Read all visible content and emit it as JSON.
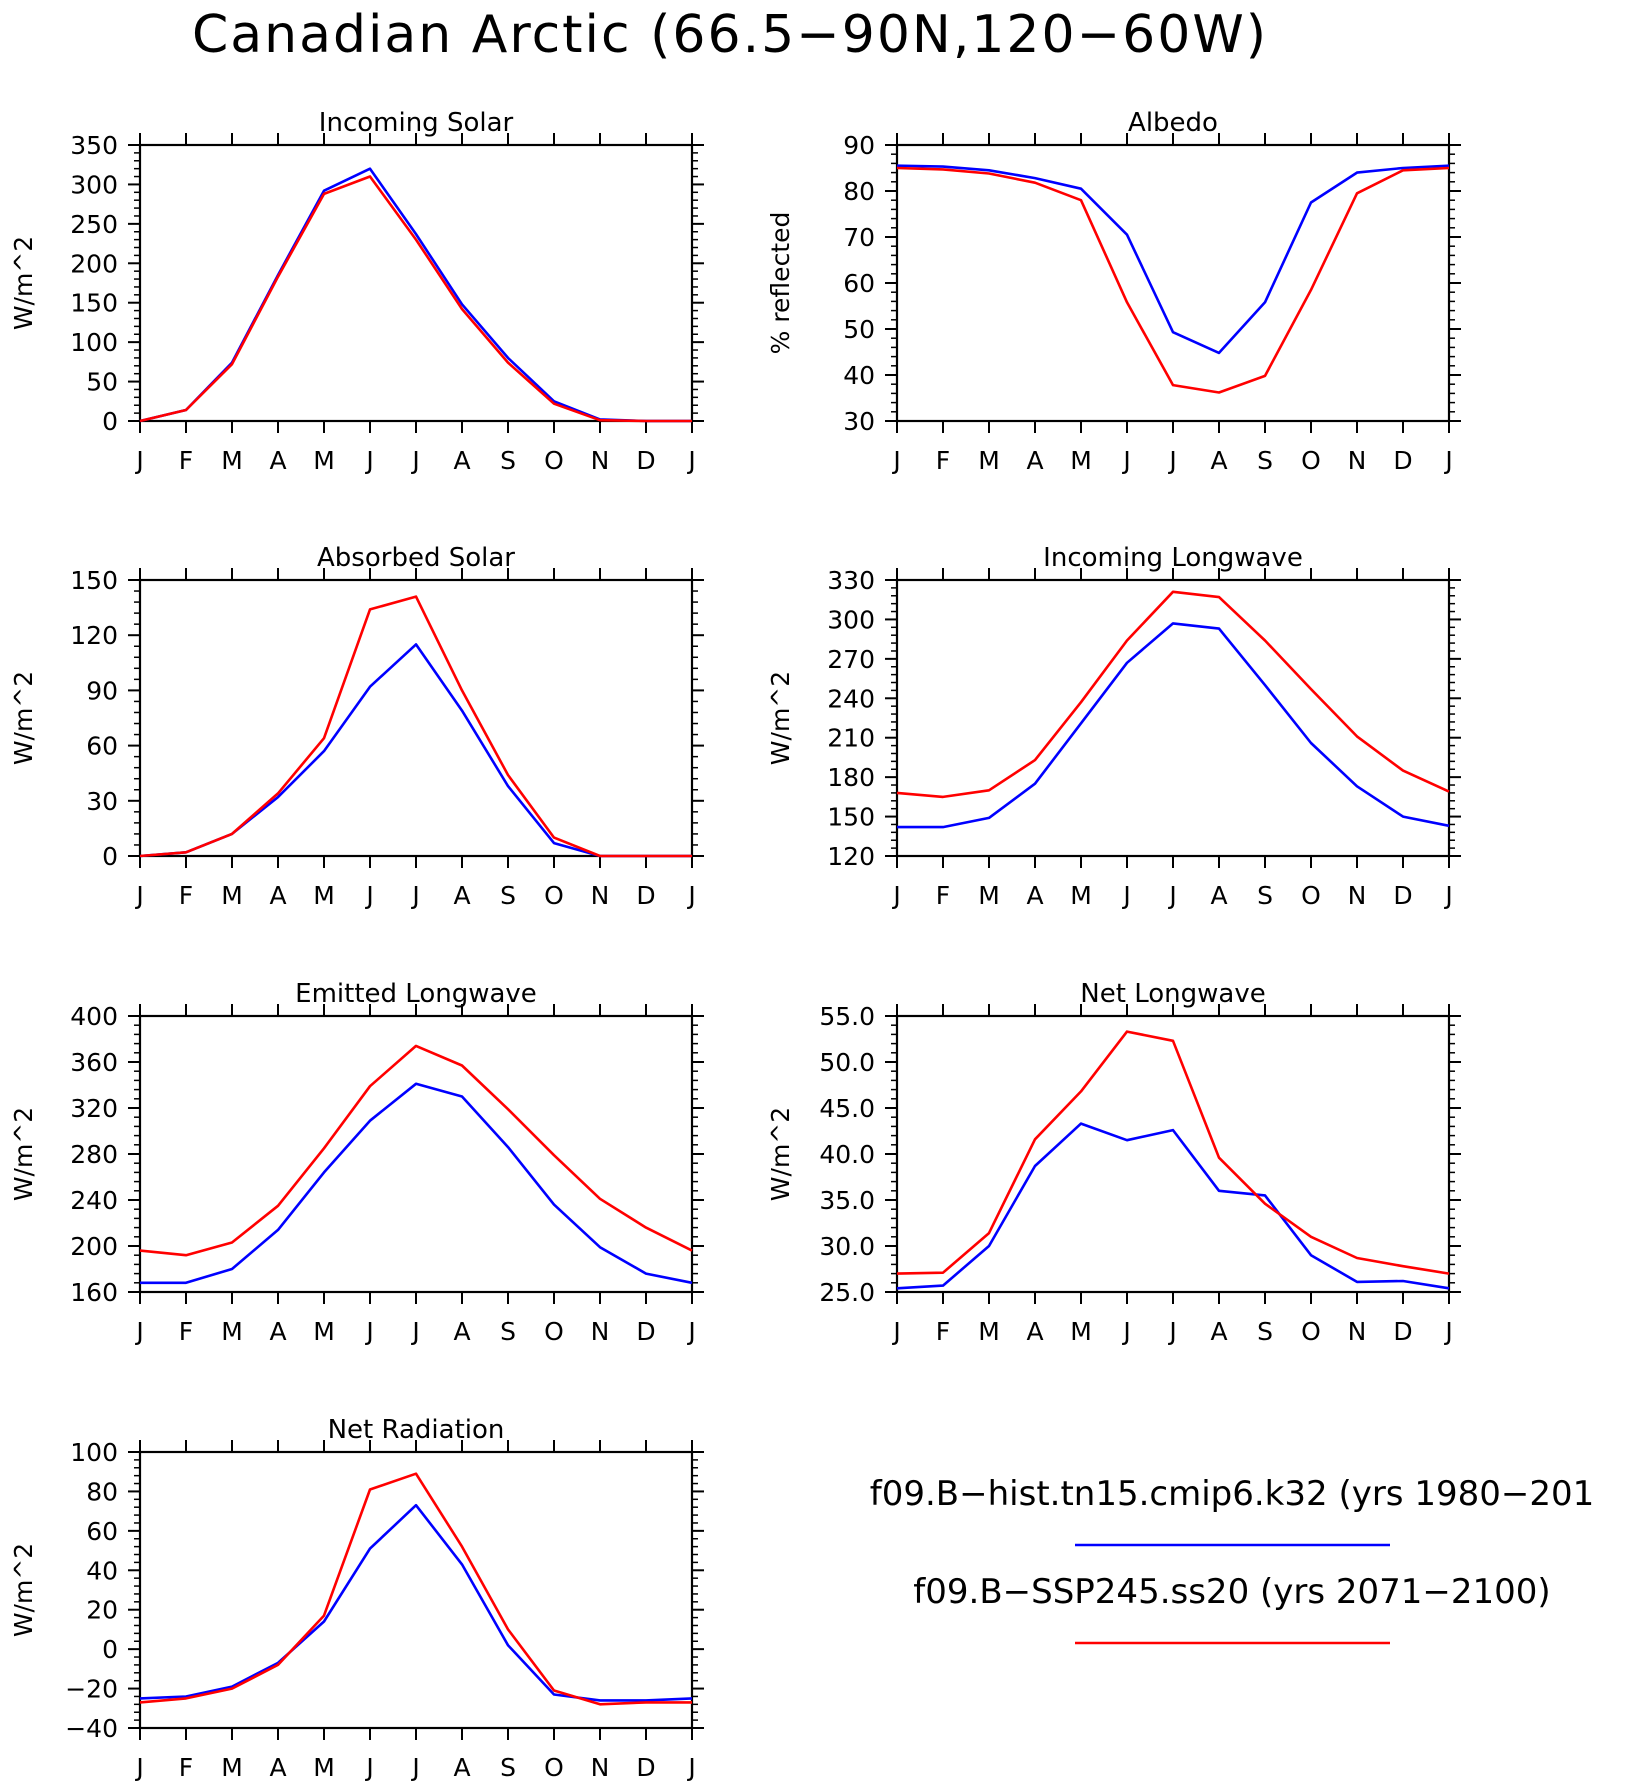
{
  "title": "Canadian Arctic (66.5−90N,120−60W)",
  "colors": {
    "hist": "#0000ff",
    "ssp": "#ff0000",
    "axis": "#000000"
  },
  "legend": [
    {
      "label": "f09.B−hist.tn15.cmip6.k32 (yrs 1980−201",
      "color": "#0000ff"
    },
    {
      "label": "f09.B−SSP245.ss20 (yrs 2071−2100)",
      "color": "#ff0000"
    }
  ],
  "chart_data": [
    {
      "type": "line",
      "title": "Incoming Solar",
      "ylabel": "W/m^2",
      "categories": [
        "J",
        "F",
        "M",
        "A",
        "M",
        "J",
        "J",
        "A",
        "S",
        "O",
        "N",
        "D",
        "J"
      ],
      "ylim": [
        0,
        350
      ],
      "yticks": [
        "0",
        "50",
        "100",
        "150",
        "200",
        "250",
        "300",
        "350"
      ],
      "grid": false,
      "series": [
        {
          "color": "#0000ff",
          "values": [
            0,
            14,
            74,
            185,
            292,
            320,
            237,
            148,
            80,
            25,
            2,
            0,
            0
          ]
        },
        {
          "color": "#ff0000",
          "values": [
            0,
            14,
            72,
            183,
            288,
            310,
            230,
            142,
            74,
            22,
            1,
            0,
            0
          ]
        }
      ]
    },
    {
      "type": "line",
      "title": "Albedo",
      "ylabel": "% reflected",
      "categories": [
        "J",
        "F",
        "M",
        "A",
        "M",
        "J",
        "J",
        "A",
        "S",
        "O",
        "N",
        "D",
        "J"
      ],
      "ylim": [
        30,
        90
      ],
      "yticks": [
        "30",
        "40",
        "50",
        "60",
        "70",
        "80",
        "90"
      ],
      "grid": false,
      "series": [
        {
          "color": "#0000ff",
          "values": [
            85.5,
            85.3,
            84.5,
            82.8,
            80.5,
            70.5,
            49.3,
            44.8,
            55.8,
            77.5,
            84.0,
            85.0,
            85.5
          ]
        },
        {
          "color": "#ff0000",
          "values": [
            85.0,
            84.7,
            83.8,
            81.8,
            78.0,
            55.8,
            37.8,
            36.2,
            39.8,
            58.5,
            79.5,
            84.5,
            85.0
          ]
        }
      ]
    },
    {
      "type": "line",
      "title": "Absorbed Solar",
      "ylabel": "W/m^2",
      "categories": [
        "J",
        "F",
        "M",
        "A",
        "M",
        "J",
        "J",
        "A",
        "S",
        "O",
        "N",
        "D",
        "J"
      ],
      "ylim": [
        0,
        150
      ],
      "yticks": [
        "0",
        "30",
        "60",
        "90",
        "120",
        "150"
      ],
      "grid": false,
      "series": [
        {
          "color": "#0000ff",
          "values": [
            0,
            2,
            12,
            32,
            57,
            92,
            115,
            79,
            38,
            7,
            0,
            0,
            0
          ]
        },
        {
          "color": "#ff0000",
          "values": [
            0,
            2,
            12,
            34,
            64,
            134,
            141,
            90,
            44,
            10,
            0,
            0,
            0
          ]
        }
      ]
    },
    {
      "type": "line",
      "title": "Incoming Longwave",
      "ylabel": "W/m^2",
      "categories": [
        "J",
        "F",
        "M",
        "A",
        "M",
        "J",
        "J",
        "A",
        "S",
        "O",
        "N",
        "D",
        "J"
      ],
      "ylim": [
        120,
        330
      ],
      "yticks": [
        "120",
        "150",
        "180",
        "210",
        "240",
        "270",
        "300",
        "330"
      ],
      "grid": false,
      "series": [
        {
          "color": "#0000ff",
          "values": [
            142,
            142,
            149,
            175,
            221,
            267,
            297,
            293,
            250,
            206,
            173,
            150,
            143
          ]
        },
        {
          "color": "#ff0000",
          "values": [
            168,
            165,
            170,
            193,
            237,
            284,
            321,
            317,
            284,
            247,
            211,
            185,
            169
          ]
        }
      ]
    },
    {
      "type": "line",
      "title": "Emitted Longwave",
      "ylabel": "W/m^2",
      "categories": [
        "J",
        "F",
        "M",
        "A",
        "M",
        "J",
        "J",
        "A",
        "S",
        "O",
        "N",
        "D",
        "J"
      ],
      "ylim": [
        160,
        400
      ],
      "yticks": [
        "160",
        "200",
        "240",
        "280",
        "320",
        "360",
        "400"
      ],
      "grid": false,
      "series": [
        {
          "color": "#0000ff",
          "values": [
            168,
            168,
            180,
            214,
            264,
            309,
            341,
            330,
            286,
            236,
            199,
            176,
            168
          ]
        },
        {
          "color": "#ff0000",
          "values": [
            196,
            192,
            203,
            235,
            285,
            339,
            374,
            357,
            319,
            279,
            241,
            216,
            196
          ]
        }
      ]
    },
    {
      "type": "line",
      "title": "Net Longwave",
      "ylabel": "W/m^2",
      "categories": [
        "J",
        "F",
        "M",
        "A",
        "M",
        "J",
        "J",
        "A",
        "S",
        "O",
        "N",
        "D",
        "J"
      ],
      "ylim": [
        25,
        55
      ],
      "yticks": [
        "25.0",
        "30.0",
        "35.0",
        "40.0",
        "45.0",
        "50.0",
        "55.0"
      ],
      "grid": false,
      "series": [
        {
          "color": "#0000ff",
          "values": [
            25.4,
            25.7,
            30.0,
            38.7,
            43.3,
            41.5,
            42.6,
            36.0,
            35.5,
            29.0,
            26.1,
            26.2,
            25.4
          ]
        },
        {
          "color": "#ff0000",
          "values": [
            27.0,
            27.1,
            31.4,
            41.6,
            46.8,
            53.3,
            52.3,
            39.6,
            34.6,
            31.0,
            28.7,
            27.8,
            27.0
          ]
        }
      ]
    },
    {
      "type": "line",
      "title": "Net Radiation",
      "ylabel": "W/m^2",
      "categories": [
        "J",
        "F",
        "M",
        "A",
        "M",
        "J",
        "J",
        "A",
        "S",
        "O",
        "N",
        "D",
        "J"
      ],
      "ylim": [
        -40,
        100
      ],
      "yticks": [
        "−40",
        "−20",
        "0",
        "20",
        "40",
        "60",
        "80",
        "100"
      ],
      "grid": false,
      "series": [
        {
          "color": "#0000ff",
          "values": [
            -25,
            -24,
            -19,
            -7,
            14,
            51,
            73,
            43,
            2,
            -23,
            -26,
            -26,
            -25
          ]
        },
        {
          "color": "#ff0000",
          "values": [
            -27,
            -25,
            -20,
            -8,
            17,
            81,
            89,
            52,
            10,
            -21,
            -28,
            -27,
            -27
          ]
        }
      ]
    }
  ]
}
